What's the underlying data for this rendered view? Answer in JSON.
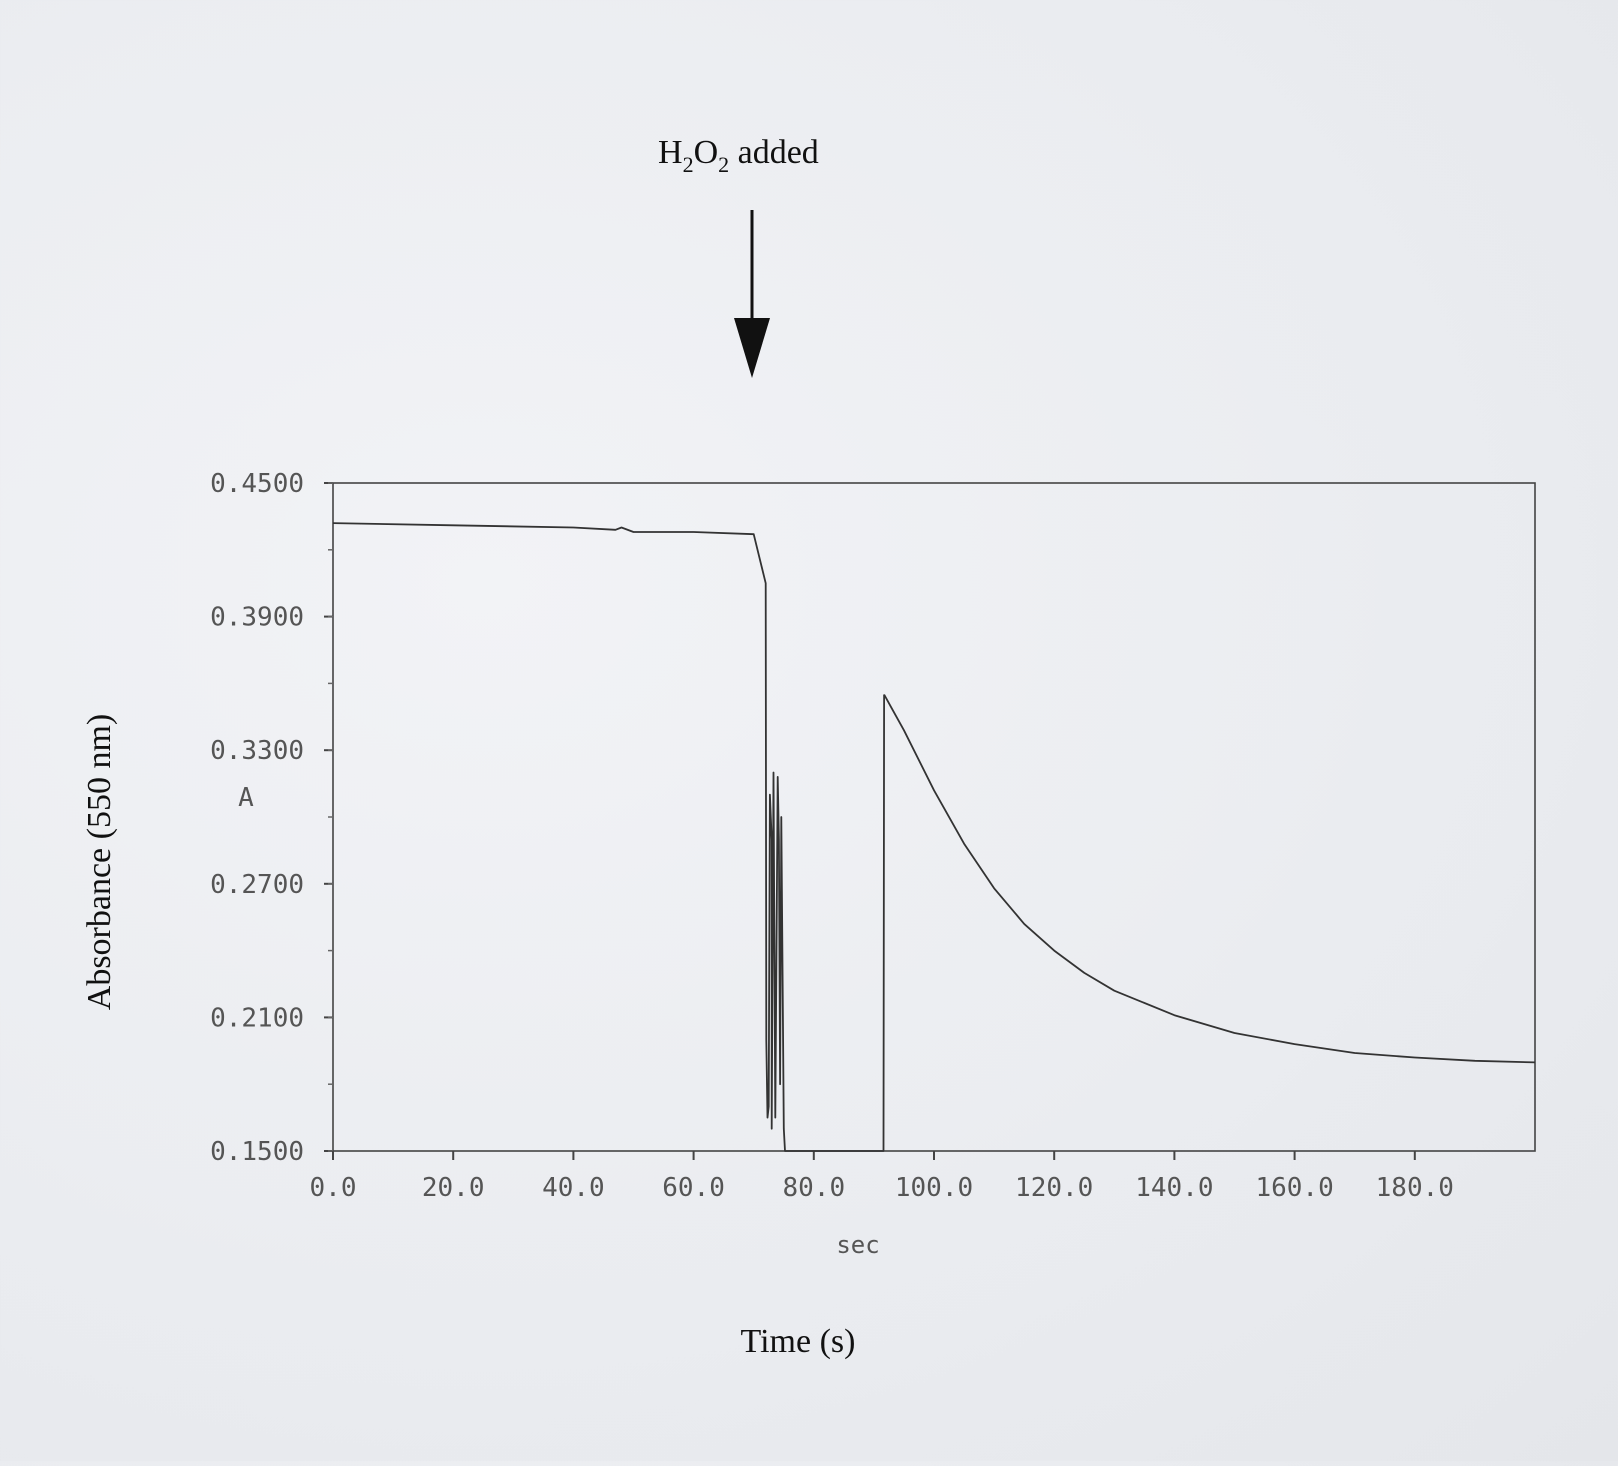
{
  "chart_data": {
    "type": "line",
    "annotation": {
      "label": "H",
      "sub1": "2",
      "mid": "O",
      "sub2": "2",
      "tail": " added",
      "at_x": 75.5
    },
    "ylabel": "Absorbance (550 nm)",
    "y_unit_label": "A",
    "xlabel_instrument": "sec",
    "xlabel": "Time (s)",
    "xlim": [
      0,
      200
    ],
    "ylim": [
      0.15,
      0.45
    ],
    "x_ticks": [
      {
        "v": 0,
        "label": "0.0"
      },
      {
        "v": 20,
        "label": "20.0"
      },
      {
        "v": 40,
        "label": "40.0"
      },
      {
        "v": 60,
        "label": "60.0"
      },
      {
        "v": 80,
        "label": "80.0"
      },
      {
        "v": 100,
        "label": "100.0"
      },
      {
        "v": 120,
        "label": "120.0"
      },
      {
        "v": 140,
        "label": "140.0"
      },
      {
        "v": 160,
        "label": "160.0"
      },
      {
        "v": 180,
        "label": "180.0"
      }
    ],
    "y_ticks": [
      {
        "v": 0.45,
        "label": "0.4500"
      },
      {
        "v": 0.39,
        "label": "0.3900"
      },
      {
        "v": 0.33,
        "label": "0.3300"
      },
      {
        "v": 0.27,
        "label": "0.2700"
      },
      {
        "v": 0.21,
        "label": "0.2100"
      },
      {
        "v": 0.15,
        "label": "0.1500"
      }
    ],
    "grid": false,
    "series": [
      {
        "x": [
          0,
          20,
          40,
          47,
          48,
          50,
          60,
          70,
          69.8,
          69.9,
          70,
          72,
          72.1,
          72.3,
          72.5,
          72.7,
          73,
          73,
          73.3,
          73.6,
          74,
          74.2,
          74.4,
          74.6,
          75,
          75.2,
          77,
          79,
          81,
          85,
          90,
          91.5,
          91.6,
          91.7
        ],
        "y": [
          0.432,
          0.431,
          0.43,
          0.429,
          0.43,
          0.428,
          0.428,
          0.427,
          0.427,
          0.427,
          0.427,
          0.405,
          0.2,
          0.165,
          0.17,
          0.31,
          0.29,
          0.16,
          0.32,
          0.165,
          0.318,
          0.29,
          0.18,
          0.3,
          0.16,
          0.15,
          0.15,
          0.15,
          0.15,
          0.15,
          0.15,
          0.15,
          0.15,
          0.355
        ]
      },
      {
        "x": [
          91.7,
          95,
          100,
          105,
          110,
          115,
          120,
          125,
          130,
          140,
          150,
          160,
          170,
          180,
          190,
          200
        ],
        "y": [
          0.355,
          0.339,
          0.312,
          0.288,
          0.268,
          0.252,
          0.24,
          0.23,
          0.222,
          0.211,
          0.203,
          0.198,
          0.194,
          0.192,
          0.1905,
          0.1898
        ]
      }
    ]
  }
}
